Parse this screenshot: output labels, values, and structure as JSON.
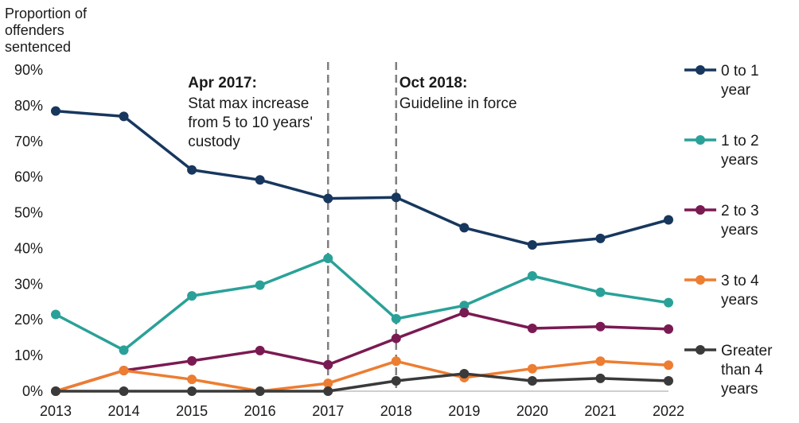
{
  "chart_data": {
    "type": "line",
    "ylabel": [
      "Proportion of",
      "offenders",
      "sentenced"
    ],
    "x": [
      "2013",
      "2014",
      "2015",
      "2016",
      "2017",
      "2018",
      "2019",
      "2020",
      "2021",
      "2022"
    ],
    "ylim": [
      0,
      90
    ],
    "yticks": [
      "0%",
      "10%",
      "20%",
      "30%",
      "40%",
      "50%",
      "60%",
      "70%",
      "80%",
      "90%"
    ],
    "series": [
      {
        "name": [
          "0 to 1",
          "year"
        ],
        "color": "#17375e",
        "values": [
          78.5,
          77,
          62,
          59.2,
          54,
          54.3,
          45.8,
          41,
          42.8,
          48
        ]
      },
      {
        "name": [
          "1 to 2",
          "years"
        ],
        "color": "#2aa198",
        "values": [
          21.5,
          11.5,
          26.7,
          29.7,
          37.2,
          20.3,
          24,
          32.3,
          27.7,
          24.8
        ]
      },
      {
        "name": [
          "2 to 3",
          "years"
        ],
        "color": "#7a1a52",
        "values": [
          0,
          5.8,
          8.5,
          11.4,
          7.4,
          14.8,
          22,
          17.6,
          18.1,
          17.4
        ]
      },
      {
        "name": [
          "3 to 4",
          "years"
        ],
        "color": "#ed7d31",
        "values": [
          0,
          5.8,
          3.3,
          0,
          2.2,
          8.4,
          3.8,
          6.3,
          8.4,
          7.3
        ]
      },
      {
        "name": [
          "Greater",
          "than 4",
          "years"
        ],
        "color": "#3a3a3a",
        "values": [
          0,
          0,
          0,
          0,
          0,
          2.9,
          4.9,
          2.9,
          3.6,
          2.9
        ]
      }
    ],
    "annotations": [
      {
        "x": "2017",
        "title": "Apr 2017:",
        "lines": [
          "Stat max increase",
          "from 5 to 10 years'",
          "custody"
        ]
      },
      {
        "x": "2018",
        "title": "Oct 2018:",
        "lines": [
          "Guideline in force"
        ]
      }
    ],
    "grid": false,
    "legend": "right"
  }
}
